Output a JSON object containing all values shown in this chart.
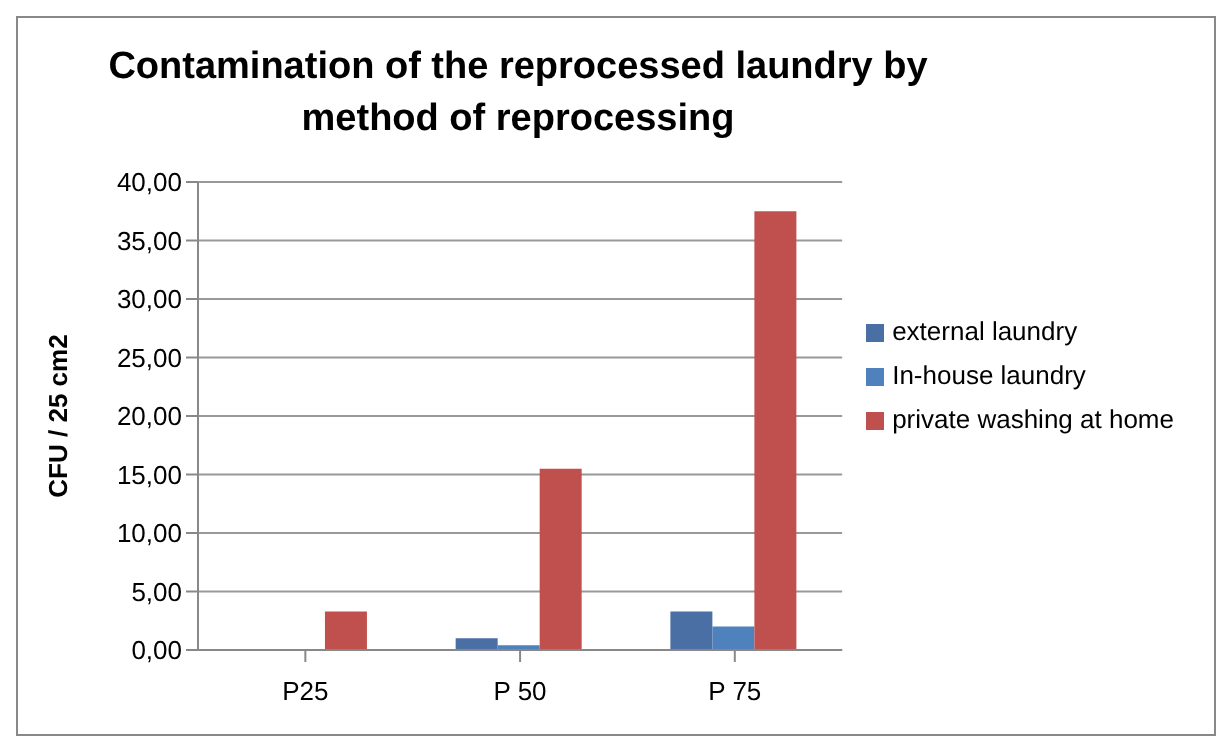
{
  "chart_data": {
    "type": "bar",
    "title": "Contamination of the reprocessed laundry by method of reprocessing",
    "ylabel": "CFU / 25 cm2",
    "categories": [
      "P25",
      "P 50",
      "P 75"
    ],
    "series": [
      {
        "name": "external laundry",
        "color": "#4a6fa5",
        "values": [
          0,
          1.0,
          3.3
        ]
      },
      {
        "name": "In-house laundry",
        "color": "#4f81bd",
        "values": [
          0,
          0.4,
          2.0
        ]
      },
      {
        "name": "private washing at home",
        "color": "#c0504d",
        "values": [
          3.3,
          15.5,
          37.5
        ]
      }
    ],
    "ylim": [
      0,
      40
    ],
    "yticks": [
      {
        "value": 0,
        "label": "0,00"
      },
      {
        "value": 5,
        "label": "5,00"
      },
      {
        "value": 10,
        "label": "10,00"
      },
      {
        "value": 15,
        "label": "15,00"
      },
      {
        "value": 20,
        "label": "20,00"
      },
      {
        "value": 25,
        "label": "25,00"
      },
      {
        "value": 30,
        "label": "30,00"
      },
      {
        "value": 35,
        "label": "35,00"
      },
      {
        "value": 40,
        "label": "40,00"
      }
    ],
    "grid": "y",
    "legend": "right"
  }
}
